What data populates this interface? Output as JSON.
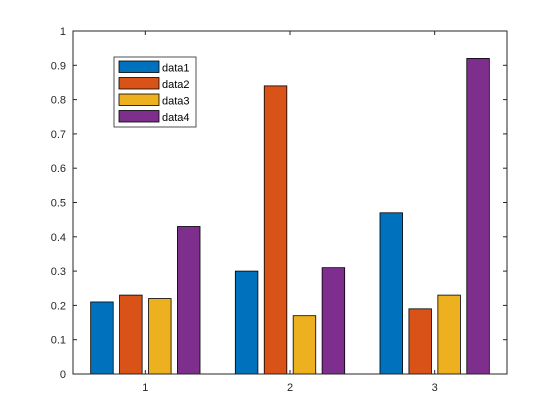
{
  "chart_data": {
    "type": "bar",
    "categories": [
      "1",
      "2",
      "3"
    ],
    "series": [
      {
        "name": "data1",
        "color": "#0072BD",
        "values": [
          0.21,
          0.3,
          0.47
        ]
      },
      {
        "name": "data2",
        "color": "#D95319",
        "values": [
          0.23,
          0.84,
          0.19
        ]
      },
      {
        "name": "data3",
        "color": "#EDB120",
        "values": [
          0.22,
          0.17,
          0.23
        ]
      },
      {
        "name": "data4",
        "color": "#7E2F8E",
        "values": [
          0.43,
          0.31,
          0.92
        ]
      }
    ],
    "ylim": [
      0,
      1
    ],
    "yticks": [
      "0",
      "0.1",
      "0.2",
      "0.3",
      "0.4",
      "0.5",
      "0.6",
      "0.7",
      "0.8",
      "0.9",
      "1"
    ],
    "legend_position": "top-left",
    "grid": false
  }
}
